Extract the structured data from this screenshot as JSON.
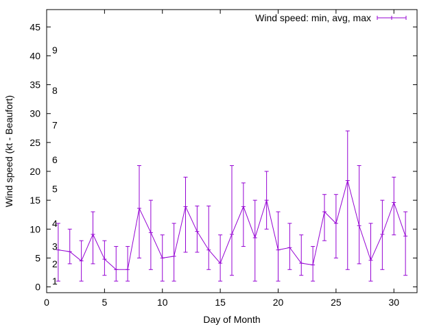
{
  "chart_data": {
    "type": "line",
    "xlabel": "Day of Month",
    "ylabel": "Wind speed (kt - Beaufort)",
    "xlim": [
      0,
      32
    ],
    "ylim": [
      -1,
      48
    ],
    "x_ticks": [
      0,
      5,
      10,
      15,
      20,
      25,
      30
    ],
    "y_ticks": [
      0,
      5,
      10,
      15,
      20,
      25,
      30,
      35,
      40,
      45
    ],
    "beaufort_labels": [
      {
        "label": "1",
        "y": 1
      },
      {
        "label": "2",
        "y": 4
      },
      {
        "label": "3",
        "y": 7
      },
      {
        "label": "4",
        "y": 11
      },
      {
        "label": "5",
        "y": 17
      },
      {
        "label": "6",
        "y": 22
      },
      {
        "label": "7",
        "y": 28
      },
      {
        "label": "8",
        "y": 34
      },
      {
        "label": "9",
        "y": 41
      }
    ],
    "legend_position": "top-right",
    "grid": false,
    "series": [
      {
        "name": "Wind speed: min, avg, max",
        "color": "#9400d3",
        "points": [
          {
            "x": 1,
            "min": 1,
            "avg": 6.4,
            "max": 11
          },
          {
            "x": 2,
            "min": 4,
            "avg": 6.1,
            "max": 10
          },
          {
            "x": 3,
            "min": 1,
            "avg": 4.5,
            "max": 8
          },
          {
            "x": 4,
            "min": 4,
            "avg": 9.1,
            "max": 13
          },
          {
            "x": 5,
            "min": 2,
            "avg": 4.8,
            "max": 8
          },
          {
            "x": 6,
            "min": 1,
            "avg": 3.0,
            "max": 7
          },
          {
            "x": 7,
            "min": 1,
            "avg": 3.0,
            "max": 7
          },
          {
            "x": 8,
            "min": 5,
            "avg": 13.6,
            "max": 21
          },
          {
            "x": 9,
            "min": 3,
            "avg": 9.4,
            "max": 15
          },
          {
            "x": 10,
            "min": 1,
            "avg": 5.0,
            "max": 9
          },
          {
            "x": 11,
            "min": 1,
            "avg": 5.3,
            "max": 11
          },
          {
            "x": 12,
            "min": 6,
            "avg": 13.9,
            "max": 19
          },
          {
            "x": 13,
            "min": 6,
            "avg": 9.6,
            "max": 14
          },
          {
            "x": 14,
            "min": 3,
            "avg": 6.4,
            "max": 14
          },
          {
            "x": 15,
            "min": 1,
            "avg": 4.1,
            "max": 9
          },
          {
            "x": 16,
            "min": 2,
            "avg": 9.1,
            "max": 21
          },
          {
            "x": 17,
            "min": 7,
            "avg": 13.9,
            "max": 18
          },
          {
            "x": 18,
            "min": 1,
            "avg": 8.5,
            "max": 15
          },
          {
            "x": 19,
            "min": 10,
            "avg": 15.0,
            "max": 20
          },
          {
            "x": 20,
            "min": 1,
            "avg": 6.4,
            "max": 13
          },
          {
            "x": 21,
            "min": 3,
            "avg": 6.8,
            "max": 11
          },
          {
            "x": 22,
            "min": 2,
            "avg": 4.1,
            "max": 9
          },
          {
            "x": 23,
            "min": 1,
            "avg": 3.8,
            "max": 7
          },
          {
            "x": 24,
            "min": 8,
            "avg": 13.0,
            "max": 16
          },
          {
            "x": 25,
            "min": 5,
            "avg": 11.0,
            "max": 16
          },
          {
            "x": 26,
            "min": 3,
            "avg": 18.4,
            "max": 27
          },
          {
            "x": 27,
            "min": 4,
            "avg": 10.6,
            "max": 21
          },
          {
            "x": 28,
            "min": 1,
            "avg": 4.6,
            "max": 11
          },
          {
            "x": 29,
            "min": 3,
            "avg": 9.1,
            "max": 15
          },
          {
            "x": 30,
            "min": 9,
            "avg": 14.6,
            "max": 19
          },
          {
            "x": 31,
            "min": 2,
            "avg": 8.8,
            "max": 13
          }
        ]
      }
    ]
  }
}
